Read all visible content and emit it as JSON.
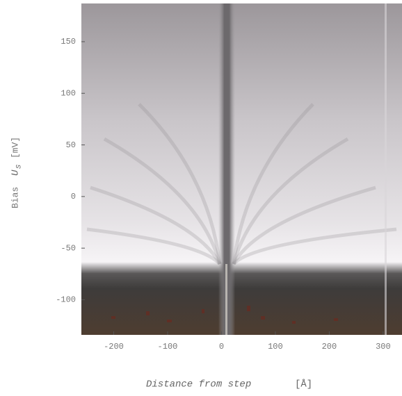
{
  "chart_data": {
    "type": "heatmap",
    "x_label": {
      "text": "Distance from step",
      "unit": "[Å]"
    },
    "y_label": {
      "prefix": "Bias",
      "variable": "U",
      "subscript": "S",
      "unit": "[mV]"
    },
    "xlim": [
      -260,
      335
    ],
    "xticks": [
      -200,
      -100,
      0,
      100,
      200,
      300
    ],
    "ylim": [
      -134,
      187
    ],
    "yticks": [
      150,
      100,
      50,
      0,
      -50,
      -100
    ],
    "grid": false
  }
}
